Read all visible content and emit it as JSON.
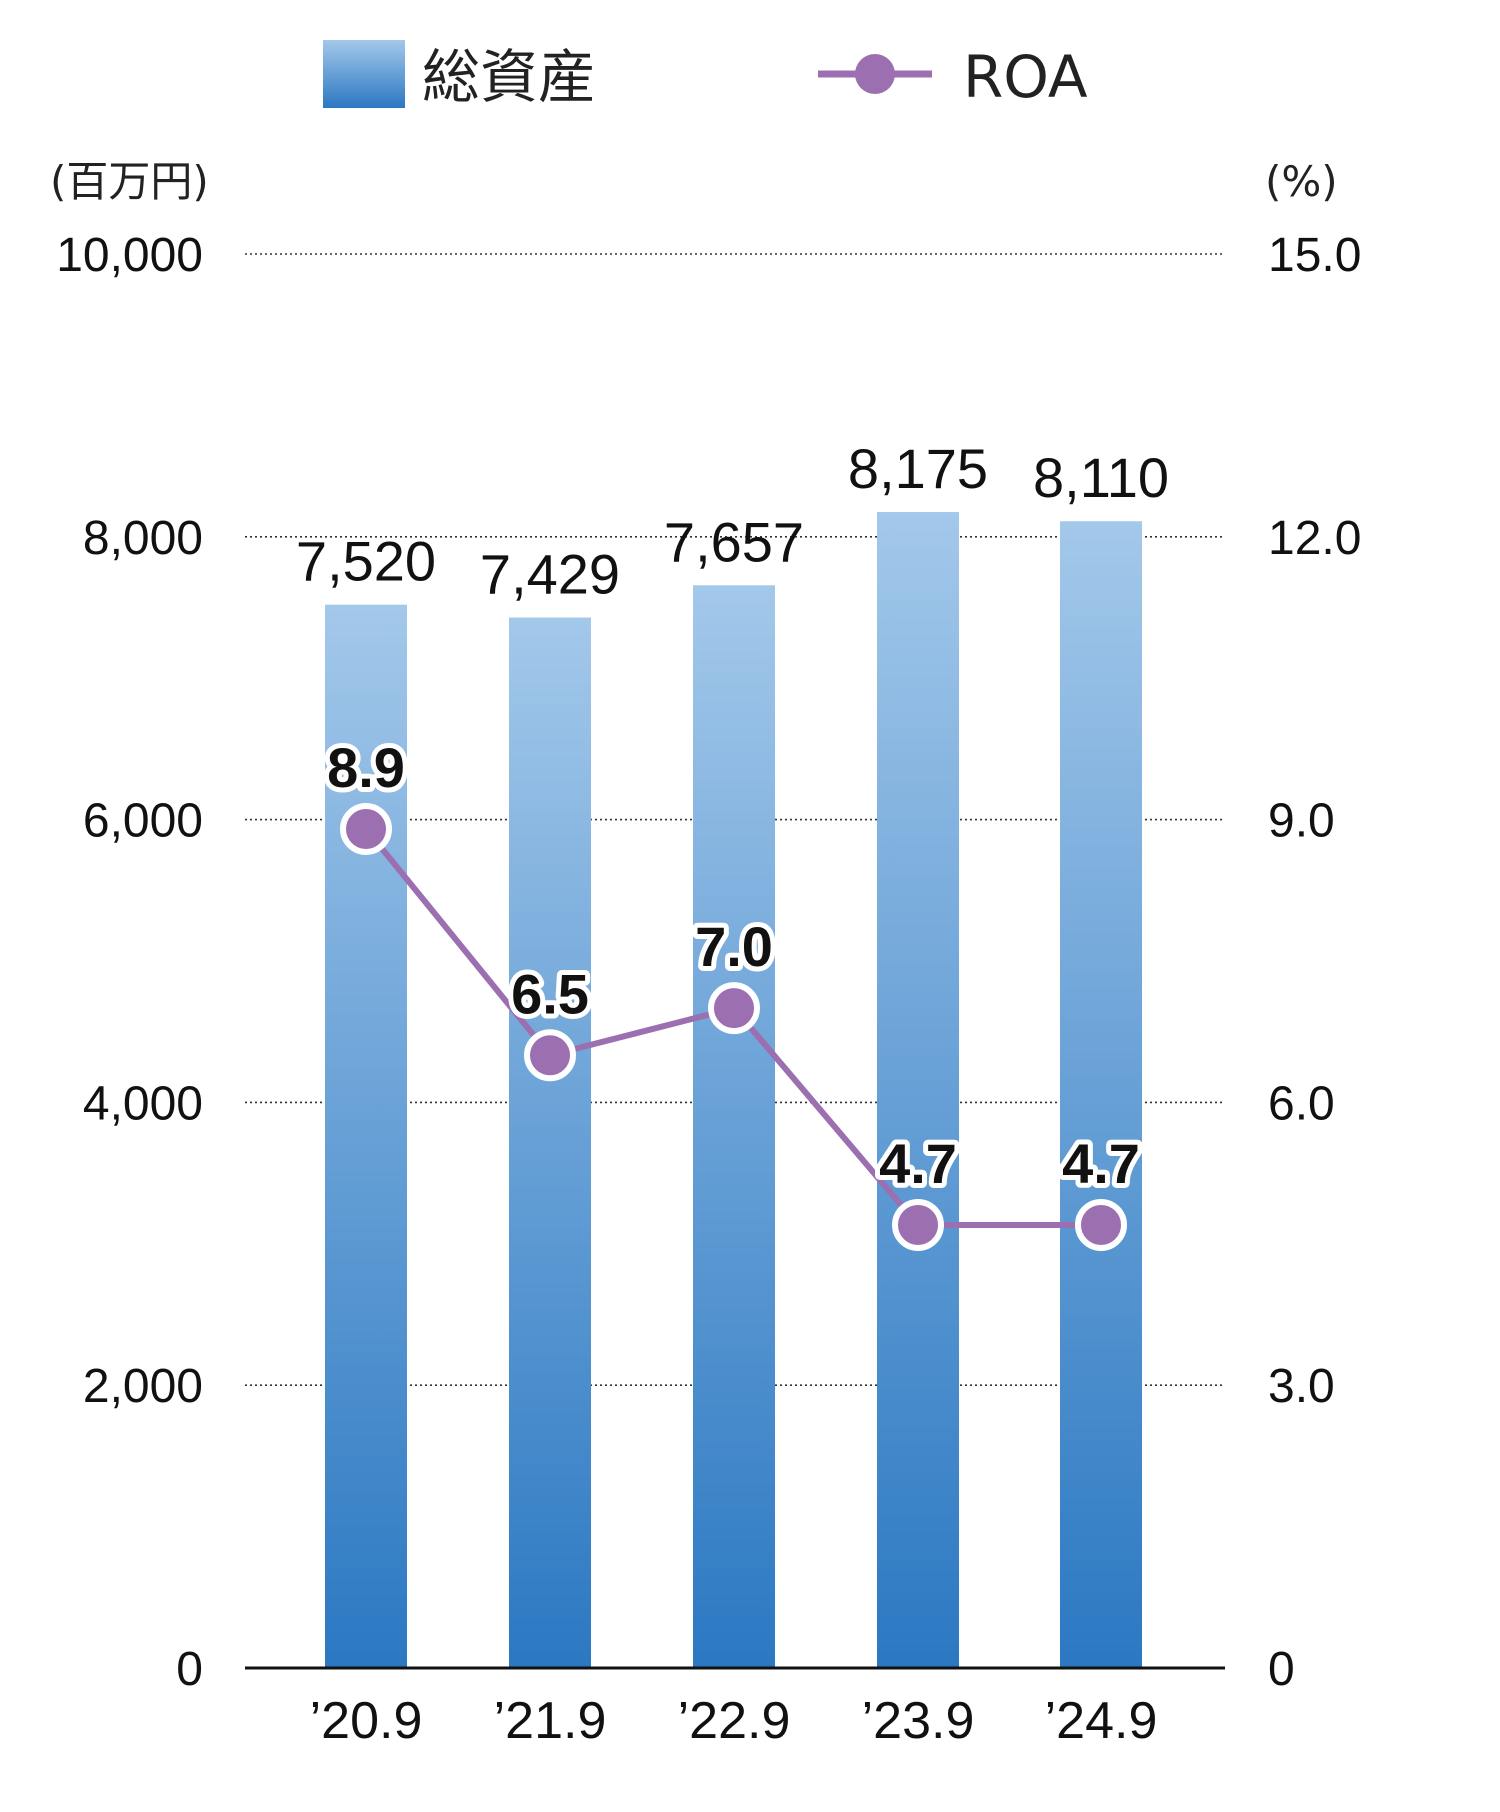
{
  "chart_data": {
    "type": "bar+line",
    "categories": [
      "’20.9",
      "’21.9",
      "’22.9",
      "’23.9",
      "’24.9"
    ],
    "legend": {
      "bar_label": "総資産",
      "line_label": "ROA",
      "placement": "top"
    },
    "y_left": {
      "unit": "(百万円)",
      "ylim": [
        0,
        10000
      ],
      "ticks": [
        "0",
        "2,000",
        "4,000",
        "6,000",
        "8,000",
        "10,000"
      ],
      "tick_values": [
        0,
        2000,
        4000,
        6000,
        8000,
        10000
      ]
    },
    "y_right": {
      "unit": "(%)",
      "ylim": [
        0,
        15
      ],
      "ticks": [
        "0",
        "3.0",
        "6.0",
        "9.0",
        "12.0",
        "15.0"
      ],
      "tick_values": [
        0,
        3,
        6,
        9,
        12,
        15
      ]
    },
    "series": [
      {
        "name": "総資産",
        "type": "bar",
        "axis": "left",
        "values": [
          7520,
          7429,
          7657,
          8175,
          8110
        ],
        "labels": [
          "7,520",
          "7,429",
          "7,657",
          "8,175",
          "8,110"
        ],
        "color_top": "#a3c8ea",
        "color_bottom": "#2b78c2"
      },
      {
        "name": "ROA",
        "type": "line",
        "axis": "right",
        "values": [
          8.9,
          6.5,
          7.0,
          4.7,
          4.7
        ],
        "labels": [
          "8.9",
          "6.5",
          "7.0",
          "4.7",
          "4.7"
        ],
        "color": "#9b6fb0"
      }
    ],
    "grid": "dotted-horizontal"
  }
}
